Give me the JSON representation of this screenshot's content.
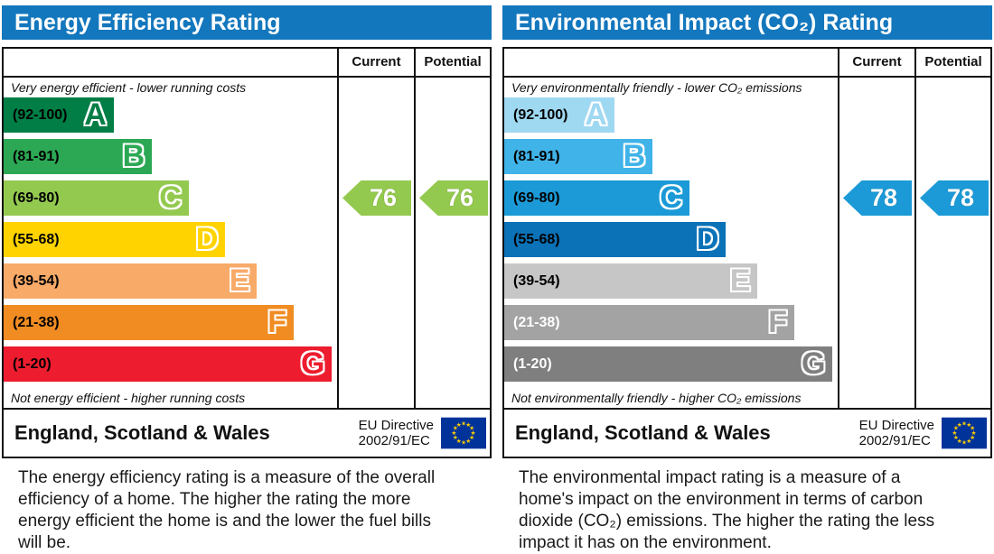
{
  "panels": [
    {
      "title": "Energy Efficiency Rating",
      "columns": {
        "current": "Current",
        "potential": "Potential"
      },
      "top_caption": "Very energy efficient - lower running costs",
      "bottom_caption": "Not energy efficient - higher running costs",
      "bands": [
        {
          "letter": "A",
          "range": "(92-100)",
          "color": "#007e45",
          "width": "33%",
          "label_color": "#000000"
        },
        {
          "letter": "B",
          "range": "(81-91)",
          "color": "#2ca854",
          "width": "44.5%",
          "label_color": "#000000"
        },
        {
          "letter": "C",
          "range": "(69-80)",
          "color": "#94c94f",
          "width": "55.5%",
          "label_color": "#000000"
        },
        {
          "letter": "D",
          "range": "(55-68)",
          "color": "#ffd300",
          "width": "66.5%",
          "label_color": "#000000"
        },
        {
          "letter": "E",
          "range": "(39-54)",
          "color": "#f8aa68",
          "width": "76%",
          "label_color": "#000000"
        },
        {
          "letter": "F",
          "range": "(21-38)",
          "color": "#f08c22",
          "width": "87%",
          "label_color": "#000000"
        },
        {
          "letter": "G",
          "range": "(1-20)",
          "color": "#ed1c2e",
          "width": "98.5%",
          "label_color": "#000000"
        }
      ],
      "current": {
        "value": "76",
        "color": "#94c94f",
        "band_index": 2
      },
      "potential": {
        "value": "76",
        "color": "#94c94f",
        "band_index": 2
      },
      "footer": {
        "region": "England, Scotland & Wales",
        "directive_line1": "EU Directive",
        "directive_line2": "2002/91/EC"
      },
      "description": "The energy efficiency rating is a measure of the overall efficiency of a home. The higher the rating the more energy efficient the home is and the lower the fuel bills will be."
    },
    {
      "title": "Environmental Impact (CO₂) Rating",
      "columns": {
        "current": "Current",
        "potential": "Potential"
      },
      "top_caption": "Very environmentally friendly - lower CO₂ emissions",
      "bottom_caption": "Not environmentally friendly - higher CO₂ emissions",
      "bands": [
        {
          "letter": "A",
          "range": "(92-100)",
          "color": "#9fd8f1",
          "width": "33%",
          "label_color": "#000000"
        },
        {
          "letter": "B",
          "range": "(81-91)",
          "color": "#40b3e8",
          "width": "44.5%",
          "label_color": "#000000"
        },
        {
          "letter": "C",
          "range": "(69-80)",
          "color": "#1b9ad7",
          "width": "55.5%",
          "label_color": "#000000"
        },
        {
          "letter": "D",
          "range": "(55-68)",
          "color": "#0b72b8",
          "width": "66.5%",
          "label_color": "#000000"
        },
        {
          "letter": "E",
          "range": "(39-54)",
          "color": "#c6c6c6",
          "width": "76%",
          "label_color": "#000000"
        },
        {
          "letter": "F",
          "range": "(21-38)",
          "color": "#a3a3a3",
          "width": "87%",
          "label_color": "#ffffff"
        },
        {
          "letter": "G",
          "range": "(1-20)",
          "color": "#7f7f7f",
          "width": "98.5%",
          "label_color": "#ffffff"
        }
      ],
      "current": {
        "value": "78",
        "color": "#1b9ad7",
        "band_index": 2
      },
      "potential": {
        "value": "78",
        "color": "#1b9ad7",
        "band_index": 2
      },
      "footer": {
        "region": "England, Scotland & Wales",
        "directive_line1": "EU Directive",
        "directive_line2": "2002/91/EC"
      },
      "description": "The environmental impact rating is a measure of a home's impact on the environment in terms of carbon dioxide (CO₂) emissions. The higher the rating the less impact it has on the environment."
    }
  ],
  "chart_data": [
    {
      "type": "bar",
      "title": "Energy Efficiency Rating",
      "categories": [
        "A (92-100)",
        "B (81-91)",
        "C (69-80)",
        "D (55-68)",
        "E (39-54)",
        "F (21-38)",
        "G (1-20)"
      ],
      "values": [
        33,
        44.5,
        55.5,
        66.5,
        76,
        87,
        98.5
      ],
      "current": 76,
      "potential": 76,
      "current_band": "C",
      "potential_band": "C",
      "xlabel": "",
      "ylabel": "",
      "scale": [
        1,
        100
      ],
      "legend": [
        "Current",
        "Potential"
      ],
      "notes": "Band bar lengths are ordinal steps A (shortest) to G (longest); values column shows relative bar width %"
    },
    {
      "type": "bar",
      "title": "Environmental Impact (CO₂) Rating",
      "categories": [
        "A (92-100)",
        "B (81-91)",
        "C (69-80)",
        "D (55-68)",
        "E (39-54)",
        "F (21-38)",
        "G (1-20)"
      ],
      "values": [
        33,
        44.5,
        55.5,
        66.5,
        76,
        87,
        98.5
      ],
      "current": 78,
      "potential": 78,
      "current_band": "C",
      "potential_band": "C",
      "xlabel": "",
      "ylabel": "",
      "scale": [
        1,
        100
      ],
      "legend": [
        "Current",
        "Potential"
      ],
      "notes": "Band bar lengths are ordinal steps A (shortest) to G (longest); values column shows relative bar width %"
    }
  ]
}
